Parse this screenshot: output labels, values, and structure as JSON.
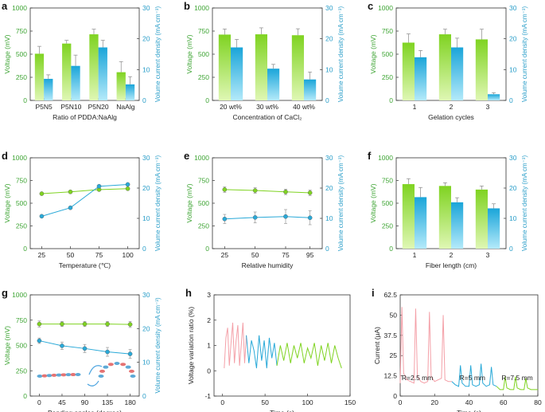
{
  "colors": {
    "green": "#7fd321",
    "green_light": "#d9f5a8",
    "blue": "#29a9d8",
    "blue_light": "#a9e6f7",
    "green_axis": "#3fa535",
    "blue_axis": "#2a9ec9",
    "pink": "#f4a0a8"
  },
  "chart_data": [
    {
      "panel": "a",
      "type": "bar",
      "categories": [
        "P5N5",
        "P5N10",
        "P5N20",
        "NaAlg"
      ],
      "xlabel": "Ratio of PDDA:NaAlg",
      "ylabel": "Voltage (mV)",
      "y2label": "Volume current density (mA cm⁻³)",
      "ylim": [
        0,
        1000
      ],
      "y2lim": [
        0,
        30
      ],
      "yticks": [
        "0",
        "250",
        "500",
        "750",
        "1000"
      ],
      "y2ticks": [
        "0",
        "10",
        "20",
        "30"
      ],
      "series": [
        {
          "name": "Voltage",
          "axis": "left",
          "values": [
            505,
            615,
            715,
            305
          ],
          "errors": [
            80,
            35,
            55,
            115
          ]
        },
        {
          "name": "Volume current density",
          "axis": "right",
          "values": [
            7.0,
            11.2,
            17.2,
            5.2
          ],
          "errors": [
            1.3,
            3.5,
            2.3,
            2.5
          ]
        }
      ]
    },
    {
      "panel": "b",
      "type": "bar",
      "categories": [
        "20 wt%",
        "30 wt%",
        "40 wt%"
      ],
      "xlabel": "Concentration of CaCl₂",
      "ylabel": "Voltage (mV)",
      "y2label": "Volume current density (mA cm⁻³)",
      "ylim": [
        0,
        1000
      ],
      "y2lim": [
        0,
        30
      ],
      "yticks": [
        "0",
        "250",
        "500",
        "750",
        "1000"
      ],
      "y2ticks": [
        "0",
        "10",
        "20",
        "30"
      ],
      "series": [
        {
          "name": "Voltage",
          "axis": "left",
          "values": [
            712,
            715,
            705
          ],
          "errors": [
            60,
            70,
            70
          ]
        },
        {
          "name": "Volume current density",
          "axis": "right",
          "values": [
            17.2,
            10.3,
            6.8
          ],
          "errors": [
            2.6,
            1.4,
            2.4
          ]
        }
      ]
    },
    {
      "panel": "c",
      "type": "bar",
      "categories": [
        "1",
        "2",
        "3"
      ],
      "xlabel": "Gelation cycles",
      "ylabel": "Voltage (mV)",
      "y2label": "Volume current density (mA cm⁻³)",
      "ylim": [
        0,
        1000
      ],
      "y2lim": [
        0,
        30
      ],
      "yticks": [
        "0",
        "250",
        "500",
        "750",
        "1000"
      ],
      "y2ticks": [
        "0",
        "10",
        "20",
        "30"
      ],
      "series": [
        {
          "name": "Voltage",
          "axis": "left",
          "values": [
            625,
            715,
            660
          ],
          "errors": [
            95,
            55,
            110
          ]
        },
        {
          "name": "Volume current density",
          "axis": "right",
          "values": [
            14.0,
            17.2,
            2.0
          ],
          "errors": [
            2.2,
            3.0,
            0.5
          ]
        }
      ]
    },
    {
      "panel": "d",
      "type": "line",
      "x": [
        25,
        50,
        75,
        100
      ],
      "xticks": [
        "25",
        "50",
        "75",
        "100"
      ],
      "xlim": [
        15,
        110
      ],
      "xlabel": "Temperature (℃)",
      "ylabel": "Voltage (mV)",
      "y2label": "Volume current density (mA cm⁻³)",
      "ylim": [
        0,
        1000
      ],
      "y2lim": [
        0,
        30
      ],
      "yticks": [
        "0",
        "250",
        "500",
        "750",
        "1000"
      ],
      "y2ticks": [
        "0",
        "10",
        "20",
        "30"
      ],
      "series": [
        {
          "name": "Voltage",
          "axis": "left",
          "values": [
            605,
            625,
            650,
            660
          ],
          "errors": [
            0,
            0,
            0,
            0
          ]
        },
        {
          "name": "Volume current density",
          "axis": "right",
          "values": [
            10.7,
            13.5,
            20.6,
            21.2
          ],
          "errors": [
            0,
            0,
            0,
            0
          ]
        }
      ]
    },
    {
      "panel": "e",
      "type": "line",
      "x": [
        25,
        50,
        75,
        95
      ],
      "xticks": [
        "25",
        "50",
        "75",
        "95"
      ],
      "xlim": [
        15,
        105
      ],
      "xlabel": "Relative humidity",
      "ylabel": "Voltage (mV)",
      "y2label": "Volume current density (mA cm⁻³)",
      "ylim": [
        0,
        1000
      ],
      "y2lim": [
        0,
        30
      ],
      "yticks": [
        "0",
        "250",
        "500",
        "750",
        "1000"
      ],
      "y2ticks": [
        "0",
        "10",
        "20",
        "30"
      ],
      "series": [
        {
          "name": "Voltage",
          "axis": "left",
          "values": [
            650,
            640,
            625,
            615
          ],
          "errors": [
            30,
            30,
            30,
            30
          ]
        },
        {
          "name": "Volume current density",
          "axis": "right",
          "values": [
            9.8,
            10.3,
            10.6,
            10.2
          ],
          "errors": [
            1.5,
            1.8,
            2.3,
            2.3
          ]
        }
      ]
    },
    {
      "panel": "f",
      "type": "bar",
      "categories": [
        "1",
        "2",
        "3"
      ],
      "xlabel": "Fiber length (cm)",
      "ylabel": "Voltage (mV)",
      "y2label": "Volume current density (mA cm⁻³)",
      "ylim": [
        0,
        1000
      ],
      "y2lim": [
        0,
        30
      ],
      "yticks": [
        "0",
        "250",
        "500",
        "750",
        "1000"
      ],
      "y2ticks": [
        "0",
        "10",
        "20",
        "30"
      ],
      "series": [
        {
          "name": "Voltage",
          "axis": "left",
          "values": [
            710,
            690,
            650
          ],
          "errors": [
            60,
            35,
            40
          ]
        },
        {
          "name": "Volume current density",
          "axis": "right",
          "values": [
            17.0,
            15.3,
            13.3
          ],
          "errors": [
            3.2,
            1.5,
            1.5
          ]
        }
      ]
    },
    {
      "panel": "g",
      "type": "line",
      "x": [
        0,
        45,
        90,
        135,
        180
      ],
      "xticks": [
        "0",
        "45",
        "90",
        "135",
        "180"
      ],
      "xlim": [
        -18,
        198
      ],
      "xlabel": "Bending angles (degree)",
      "ylabel": "Voltage (mV)",
      "y2label": "Volume current density (mA cm⁻³)",
      "ylim": [
        0,
        1000
      ],
      "y2lim": [
        0,
        30
      ],
      "yticks": [
        "0",
        "250",
        "500",
        "750",
        "1000"
      ],
      "y2ticks": [
        "0",
        "10",
        "20",
        "30"
      ],
      "series": [
        {
          "name": "Voltage",
          "axis": "left",
          "values": [
            712,
            712,
            712,
            712,
            708
          ],
          "errors": [
            30,
            25,
            25,
            25,
            30
          ]
        },
        {
          "name": "Volume current density",
          "axis": "right",
          "values": [
            16.4,
            14.9,
            14.1,
            13.1,
            12.5
          ],
          "errors": [
            0.8,
            1.1,
            1.2,
            1.3,
            1.3
          ]
        }
      ]
    },
    {
      "panel": "h",
      "type": "line",
      "xlabel": "Time (s)",
      "ylabel": "Voltage variation ratio (%)",
      "xlim": [
        -10,
        150
      ],
      "ylim": [
        -1,
        3
      ],
      "xticks": [
        "0",
        "50",
        "100",
        "150"
      ],
      "yticks": [
        "-1",
        "0",
        "1",
        "2",
        "3"
      ],
      "segments": [
        {
          "color": "pink",
          "x": [
            2,
            4,
            6,
            8,
            10,
            12,
            14,
            16,
            18,
            20,
            22,
            24,
            26,
            28
          ],
          "values": [
            0.1,
            1.3,
            1.7,
            0.2,
            1.1,
            1.9,
            0.3,
            1.2,
            1.8,
            0.2,
            1.0,
            1.9,
            0.3,
            1.4
          ]
        },
        {
          "color": "blue",
          "x": [
            28,
            31,
            34,
            37,
            40,
            43,
            46,
            49,
            52,
            55,
            58,
            61,
            64
          ],
          "values": [
            1.4,
            0.3,
            1.2,
            0.8,
            0.1,
            1.4,
            0.4,
            1.2,
            0.1,
            1.3,
            0.5,
            1.1,
            0.2
          ]
        },
        {
          "color": "green",
          "x": [
            64,
            68,
            72,
            76,
            80,
            84,
            88,
            92,
            96,
            100,
            104,
            108,
            112,
            116,
            120,
            124,
            128,
            132,
            136,
            140
          ],
          "values": [
            0.2,
            1.0,
            0.4,
            1.1,
            0.3,
            1.0,
            0.5,
            1.1,
            0.3,
            0.9,
            0.5,
            1.1,
            0.2,
            1.0,
            0.4,
            1.1,
            0.3,
            1.0,
            0.5,
            0.1
          ]
        }
      ]
    },
    {
      "panel": "i",
      "type": "line",
      "xlabel": "Time (s)",
      "ylabel": "Current (μA)",
      "xlim": [
        0,
        80
      ],
      "ylim": [
        0,
        62.5
      ],
      "xticks": [
        "0",
        "20",
        "40",
        "60",
        "80"
      ],
      "yticks": [
        "0",
        "12.5",
        "25",
        "37.5",
        "50",
        "62.5"
      ],
      "annotations": [
        "R=2.5 mm",
        "R=5 mm",
        "R=7.5 mm"
      ],
      "segments": [
        {
          "color": "pink",
          "x": [
            0,
            1,
            2,
            4,
            6,
            8,
            9,
            10,
            12,
            14,
            16,
            17,
            18,
            20,
            22,
            24,
            25,
            26,
            28,
            30
          ],
          "values": [
            8,
            55,
            14,
            10,
            9,
            8,
            54,
            12,
            9,
            8,
            9,
            52,
            12,
            9,
            10,
            11,
            50,
            10,
            9,
            9
          ]
        },
        {
          "color": "blue",
          "x": [
            30,
            32,
            34,
            35,
            36,
            38,
            40,
            41,
            42,
            44,
            46,
            47,
            48,
            50,
            52,
            53,
            54,
            56
          ],
          "values": [
            9,
            7,
            6,
            19,
            8,
            6,
            6,
            19,
            7,
            6,
            7,
            20,
            8,
            6,
            7,
            18,
            7,
            6
          ]
        },
        {
          "color": "green",
          "x": [
            56,
            58,
            60,
            61,
            62,
            64,
            66,
            67,
            68,
            70,
            72,
            73,
            74,
            76,
            78,
            80
          ],
          "values": [
            6,
            4,
            4,
            12,
            5,
            4,
            4,
            12,
            5,
            4,
            4,
            11,
            5,
            4,
            4,
            4
          ]
        }
      ]
    }
  ]
}
